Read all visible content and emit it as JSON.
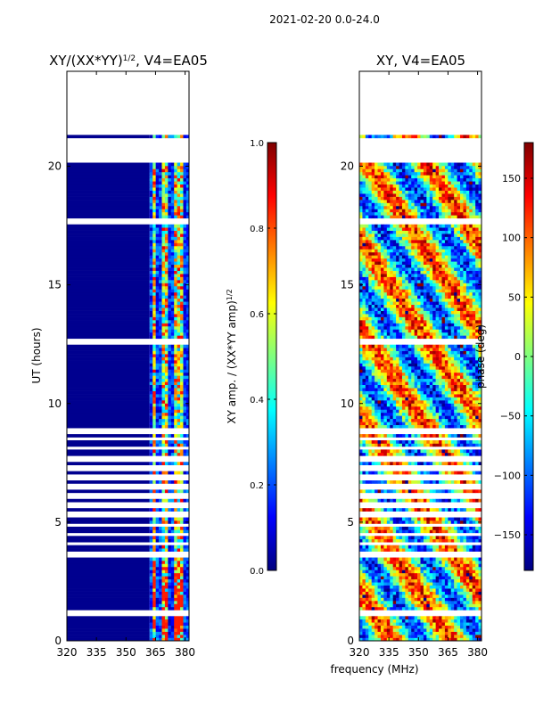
{
  "suptitle": "2021-02-20 0.0-24.0",
  "xlabel": "frequency (MHz)",
  "chart_data": [
    {
      "type": "heatmap",
      "title_main": "XY/(XX*YY)",
      "title_sup": "1/2",
      "title_tail": ", V4=EA05",
      "xlabel": "frequency (MHz)",
      "ylabel": "UT (hours)",
      "xlim": [
        320,
        382
      ],
      "ylim": [
        0,
        24
      ],
      "xticks": [
        320,
        335,
        350,
        365,
        380
      ],
      "yticks": [
        0,
        5,
        10,
        15,
        20
      ],
      "colorbar": {
        "label_main": "XY amp. / (XX*YY amp)",
        "label_sup": "1/2",
        "range": [
          0.0,
          1.0
        ],
        "ticks": [
          "0.0",
          "0.2",
          "0.4",
          "0.6",
          "0.8",
          "1.0"
        ],
        "colormap": "jet"
      }
    },
    {
      "type": "heatmap",
      "title": "XY, V4=EA05",
      "xlabel": "frequency (MHz)",
      "ylabel": "",
      "xlim": [
        320,
        382
      ],
      "ylim": [
        0,
        24
      ],
      "xticks": [
        320,
        335,
        350,
        365,
        380
      ],
      "yticks": [
        0,
        5,
        10,
        15,
        20
      ],
      "colorbar": {
        "label": "phase (deg)",
        "range": [
          -180,
          180
        ],
        "ticks": [
          "-150",
          "-100",
          "-50",
          "0",
          "50",
          "100",
          "150"
        ],
        "colormap": "jet"
      }
    }
  ]
}
